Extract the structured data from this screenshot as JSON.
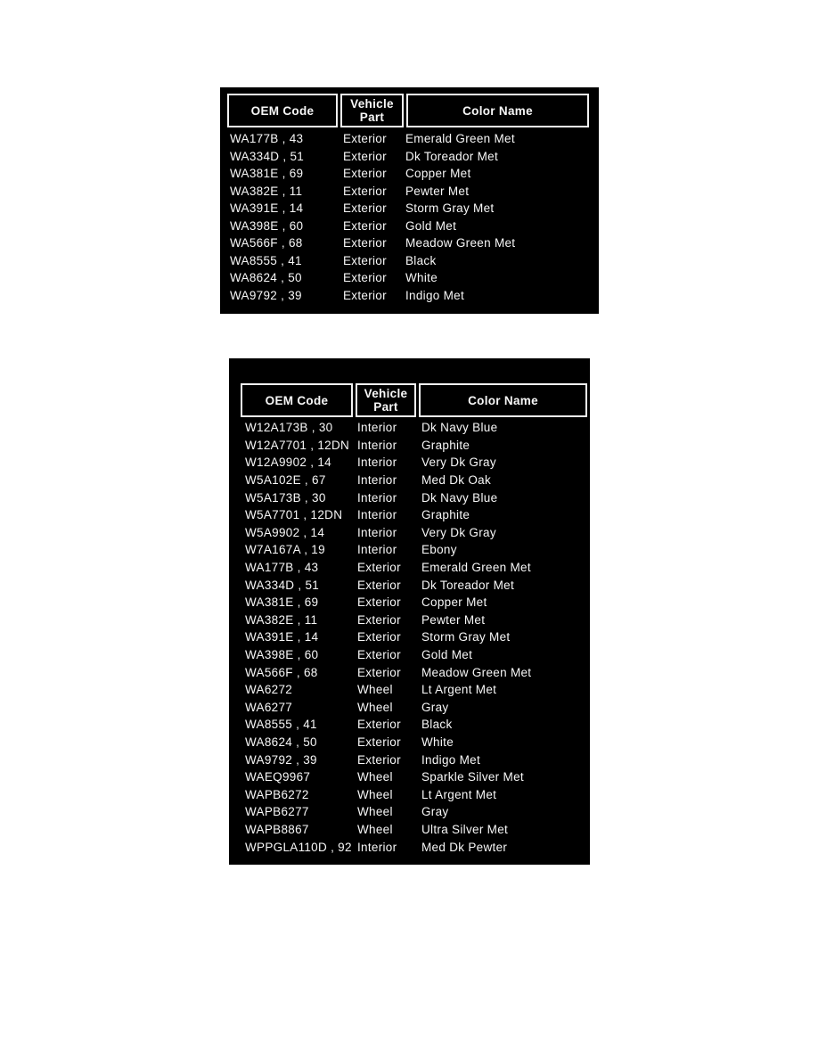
{
  "colors": {
    "page_background": "#ffffff",
    "table_background": "#000000",
    "table_text": "#f7f7f7",
    "header_border": "#f2f2f2"
  },
  "table1": {
    "title": "paint-codes-table-top",
    "headers": {
      "oem": "OEM Code",
      "part": "Vehicle Part",
      "color": "Color Name"
    },
    "rows": [
      {
        "oem": "WA177B , 43",
        "part": "Exterior",
        "color": "Emerald Green Met"
      },
      {
        "oem": "WA334D , 51",
        "part": "Exterior",
        "color": "Dk Toreador Met"
      },
      {
        "oem": "WA381E , 69",
        "part": "Exterior",
        "color": "Copper Met"
      },
      {
        "oem": "WA382E , 11",
        "part": "Exterior",
        "color": "Pewter Met"
      },
      {
        "oem": "WA391E , 14",
        "part": "Exterior",
        "color": "Storm Gray Met"
      },
      {
        "oem": "WA398E , 60",
        "part": "Exterior",
        "color": "Gold Met"
      },
      {
        "oem": "WA566F , 68",
        "part": "Exterior",
        "color": "Meadow Green Met"
      },
      {
        "oem": "WA8555 , 41",
        "part": "Exterior",
        "color": "Black"
      },
      {
        "oem": "WA8624 , 50",
        "part": "Exterior",
        "color": "White"
      },
      {
        "oem": "WA9792 , 39",
        "part": "Exterior",
        "color": "Indigo Met"
      }
    ]
  },
  "table2": {
    "title": "paint-codes-table-bottom",
    "headers": {
      "oem": "OEM Code",
      "part": "Vehicle Part",
      "color": "Color Name"
    },
    "rows": [
      {
        "oem": "W12A173B , 30",
        "part": "Interior",
        "color": "Dk Navy Blue"
      },
      {
        "oem": "W12A7701 , 12DN",
        "part": "Interior",
        "color": "Graphite"
      },
      {
        "oem": "W12A9902 , 14",
        "part": "Interior",
        "color": "Very Dk Gray"
      },
      {
        "oem": "W5A102E , 67",
        "part": "Interior",
        "color": "Med Dk Oak"
      },
      {
        "oem": "W5A173B , 30",
        "part": "Interior",
        "color": "Dk Navy Blue"
      },
      {
        "oem": "W5A7701 , 12DN",
        "part": "Interior",
        "color": "Graphite"
      },
      {
        "oem": "W5A9902 , 14",
        "part": "Interior",
        "color": "Very Dk Gray"
      },
      {
        "oem": "W7A167A , 19",
        "part": "Interior",
        "color": "Ebony"
      },
      {
        "oem": "WA177B , 43",
        "part": "Exterior",
        "color": "Emerald Green Met"
      },
      {
        "oem": "WA334D , 51",
        "part": "Exterior",
        "color": "Dk Toreador Met"
      },
      {
        "oem": "WA381E , 69",
        "part": "Exterior",
        "color": "Copper Met"
      },
      {
        "oem": "WA382E , 11",
        "part": "Exterior",
        "color": "Pewter Met"
      },
      {
        "oem": "WA391E , 14",
        "part": "Exterior",
        "color": "Storm Gray Met"
      },
      {
        "oem": "WA398E , 60",
        "part": "Exterior",
        "color": "Gold Met"
      },
      {
        "oem": "WA566F , 68",
        "part": "Exterior",
        "color": "Meadow Green Met"
      },
      {
        "oem": "WA6272",
        "part": "Wheel",
        "color": "Lt Argent Met"
      },
      {
        "oem": "WA6277",
        "part": "Wheel",
        "color": "Gray"
      },
      {
        "oem": "WA8555 , 41",
        "part": "Exterior",
        "color": "Black"
      },
      {
        "oem": "WA8624 , 50",
        "part": "Exterior",
        "color": "White"
      },
      {
        "oem": "WA9792 , 39",
        "part": "Exterior",
        "color": "Indigo Met"
      },
      {
        "oem": "WAEQ9967",
        "part": "Wheel",
        "color": "Sparkle Silver Met"
      },
      {
        "oem": "WAPB6272",
        "part": "Wheel",
        "color": "Lt Argent Met"
      },
      {
        "oem": "WAPB6277",
        "part": "Wheel",
        "color": "Gray"
      },
      {
        "oem": "WAPB8867",
        "part": "Wheel",
        "color": "Ultra Silver Met"
      },
      {
        "oem": "WPPGLA110D , 92",
        "part": "Interior",
        "color": "Med Dk Pewter"
      }
    ]
  }
}
